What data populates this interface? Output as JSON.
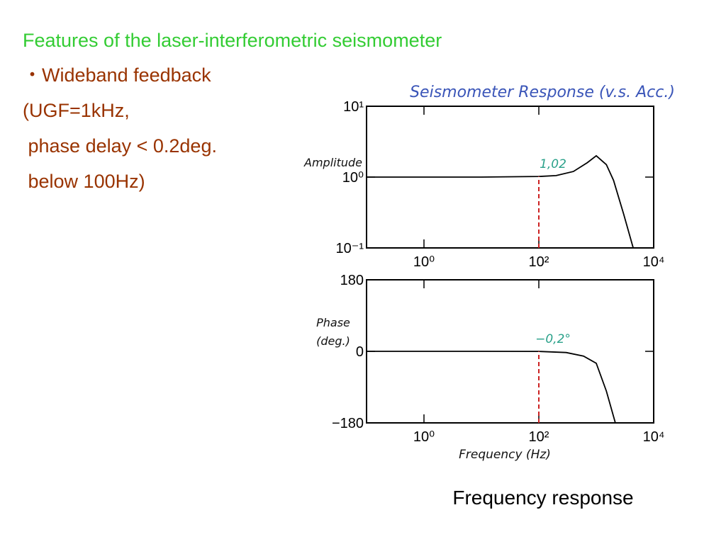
{
  "slide": {
    "title": "Features of the laser-interferometric seismometer",
    "lines": [
      "・Wideband feedback",
      "(UGF=1kHz,",
      " phase delay < 0.2deg.",
      " below 100Hz)"
    ],
    "caption": "Frequency response"
  },
  "chart_data": [
    {
      "type": "line",
      "title": "Seismometer Response (v.s. Acc.)",
      "ylabel": [
        "Amplitude"
      ],
      "xscale": "log",
      "yscale": "log",
      "x": [
        0.1,
        1,
        10,
        100,
        200,
        400,
        700,
        1000,
        1500,
        2000,
        3000,
        4400
      ],
      "values": [
        1,
        1,
        1,
        1.02,
        1.05,
        1.2,
        1.6,
        2,
        1.5,
        0.9,
        0.3,
        0.1
      ],
      "color": "#000000",
      "xlim": [
        0.1,
        10000
      ],
      "xticks": [
        {
          "value": 1,
          "label": "10⁰"
        },
        {
          "value": 100,
          "label": "10²"
        },
        {
          "value": 10000,
          "label": "10⁴"
        }
      ],
      "ylim": [
        0.1,
        10
      ],
      "yticks": [
        {
          "value": 0.1,
          "label": "10⁻¹"
        },
        {
          "value": 1,
          "label": "10⁰"
        },
        {
          "value": 10,
          "label": "10¹"
        }
      ],
      "annotation": {
        "text": "1,02",
        "x": 100,
        "y": 1.02,
        "color": "#2aa18a",
        "line_color": "#cc2222"
      }
    },
    {
      "type": "line",
      "ylabel": [
        "Phase",
        "(deg.)"
      ],
      "xlabel": "Frequency (Hz)",
      "xscale": "log",
      "yscale": "linear",
      "x": [
        0.1,
        1,
        10,
        100,
        300,
        600,
        1000,
        1500,
        2150
      ],
      "values": [
        0,
        0,
        0,
        -0.2,
        -3,
        -12,
        -30,
        -100,
        -180
      ],
      "color": "#000000",
      "xlim": [
        0.1,
        10000
      ],
      "xticks": [
        {
          "value": 1,
          "label": "10⁰"
        },
        {
          "value": 100,
          "label": "10²"
        },
        {
          "value": 10000,
          "label": "10⁴"
        }
      ],
      "ylim": [
        -180,
        180
      ],
      "yticks": [
        {
          "value": -180,
          "label": "−180"
        },
        0,
        180
      ],
      "annotation": {
        "text": "−0,2°",
        "x": 100,
        "y": -0.2,
        "color": "#2aa18a",
        "line_color": "#cc2222"
      }
    }
  ]
}
